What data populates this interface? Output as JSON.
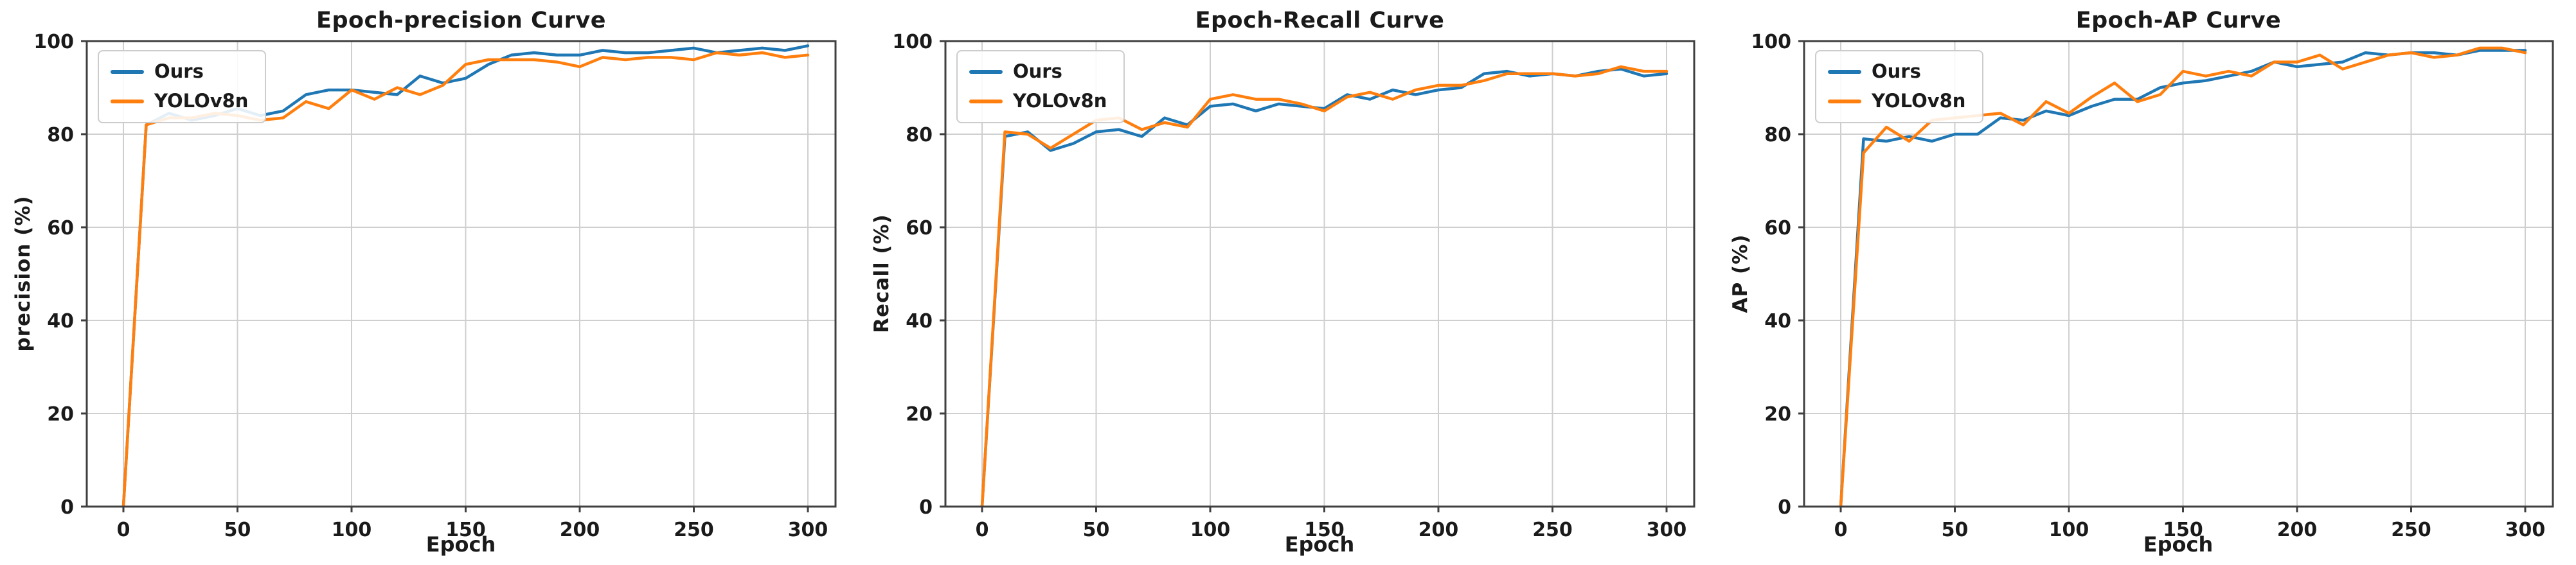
{
  "style": {
    "grid_color": "#cfcfcf",
    "spine_color": "#3f3f3f",
    "tick_label_color": "#1a1a1a",
    "ours_color": "#1f77b4",
    "yolov8n_color": "#ff7f0e"
  },
  "chart_data": [
    {
      "type": "line",
      "title": "Epoch-precision Curve",
      "xlabel": "Epoch",
      "ylabel": "precision (%)",
      "xlim": [
        0,
        300
      ],
      "ylim": [
        0,
        100
      ],
      "x_ticks": [
        0,
        50,
        100,
        150,
        200,
        250,
        300
      ],
      "y_ticks": [
        0,
        20,
        40,
        60,
        80,
        100
      ],
      "grid": true,
      "legend_position": "upper-left",
      "x": [
        0,
        10,
        20,
        30,
        40,
        50,
        60,
        70,
        80,
        90,
        100,
        110,
        120,
        130,
        140,
        150,
        160,
        170,
        180,
        190,
        200,
        210,
        220,
        230,
        240,
        250,
        260,
        270,
        280,
        290,
        300
      ],
      "series": [
        {
          "name": "Ours",
          "color": "#1f77b4",
          "values": [
            0,
            82,
            84.5,
            83,
            84,
            85.5,
            84,
            85,
            88.5,
            89.5,
            89.5,
            89,
            88.5,
            92.5,
            91,
            92,
            95,
            97,
            97.5,
            97,
            97,
            98,
            97.5,
            97.5,
            98,
            98.5,
            97.5,
            98,
            98.5,
            98,
            99
          ]
        },
        {
          "name": "YOLOv8n",
          "color": "#ff7f0e",
          "values": [
            0,
            82,
            83.5,
            83.5,
            84.5,
            84,
            83,
            83.5,
            87,
            85.5,
            89.5,
            87.5,
            90,
            88.5,
            90.5,
            95,
            96,
            96,
            96,
            95.5,
            94.5,
            96.5,
            96,
            96.5,
            96.5,
            96,
            97.5,
            97,
            97.5,
            96.5,
            97
          ]
        }
      ]
    },
    {
      "type": "line",
      "title": "Epoch-Recall Curve",
      "xlabel": "Epoch",
      "ylabel": "Recall (%)",
      "xlim": [
        0,
        300
      ],
      "ylim": [
        0,
        100
      ],
      "x_ticks": [
        0,
        50,
        100,
        150,
        200,
        250,
        300
      ],
      "y_ticks": [
        0,
        20,
        40,
        60,
        80,
        100
      ],
      "grid": true,
      "legend_position": "upper-left",
      "x": [
        0,
        10,
        20,
        30,
        40,
        50,
        60,
        70,
        80,
        90,
        100,
        110,
        120,
        130,
        140,
        150,
        160,
        170,
        180,
        190,
        200,
        210,
        220,
        230,
        240,
        250,
        260,
        270,
        280,
        290,
        300
      ],
      "series": [
        {
          "name": "Ours",
          "color": "#1f77b4",
          "values": [
            0,
            79.5,
            80.5,
            76.5,
            78,
            80.5,
            81,
            79.5,
            83.5,
            82,
            86,
            86.5,
            85,
            86.5,
            86,
            85.5,
            88.5,
            87.5,
            89.5,
            88.5,
            89.5,
            90,
            93,
            93.5,
            92.5,
            93,
            92.5,
            93.5,
            94,
            92.5,
            93
          ]
        },
        {
          "name": "YOLOv8n",
          "color": "#ff7f0e",
          "values": [
            0,
            80.5,
            80,
            77,
            80,
            83,
            83.5,
            81,
            82.5,
            81.5,
            87.5,
            88.5,
            87.5,
            87.5,
            86.5,
            85,
            88,
            89,
            87.5,
            89.5,
            90.5,
            90.5,
            91.5,
            93,
            93,
            93,
            92.5,
            93,
            94.5,
            93.5,
            93.5
          ]
        }
      ]
    },
    {
      "type": "line",
      "title": "Epoch-AP Curve",
      "xlabel": "Epoch",
      "ylabel": "AP (%)",
      "xlim": [
        0,
        300
      ],
      "ylim": [
        0,
        100
      ],
      "x_ticks": [
        0,
        50,
        100,
        150,
        200,
        250,
        300
      ],
      "y_ticks": [
        0,
        20,
        40,
        60,
        80,
        100
      ],
      "grid": true,
      "legend_position": "upper-left",
      "x": [
        0,
        10,
        20,
        30,
        40,
        50,
        60,
        70,
        80,
        90,
        100,
        110,
        120,
        130,
        140,
        150,
        160,
        170,
        180,
        190,
        200,
        210,
        220,
        230,
        240,
        250,
        260,
        270,
        280,
        290,
        300
      ],
      "series": [
        {
          "name": "Ours",
          "color": "#1f77b4",
          "values": [
            0,
            79,
            78.5,
            79.5,
            78.5,
            80,
            80,
            83.5,
            83,
            85,
            84,
            86,
            87.5,
            87.5,
            90,
            91,
            91.5,
            92.5,
            93.5,
            95.5,
            94.5,
            95,
            95.5,
            97.5,
            97,
            97.5,
            97.5,
            97,
            98,
            98,
            98
          ]
        },
        {
          "name": "YOLOv8n",
          "color": "#ff7f0e",
          "values": [
            0,
            76,
            81.5,
            78.5,
            83,
            83.5,
            84,
            84.5,
            82,
            87,
            84.5,
            88,
            91,
            87,
            88.5,
            93.5,
            92.5,
            93.5,
            92.5,
            95.5,
            95.5,
            97,
            94,
            95.5,
            97,
            97.5,
            96.5,
            97,
            98.5,
            98.5,
            97.5
          ]
        }
      ]
    }
  ]
}
